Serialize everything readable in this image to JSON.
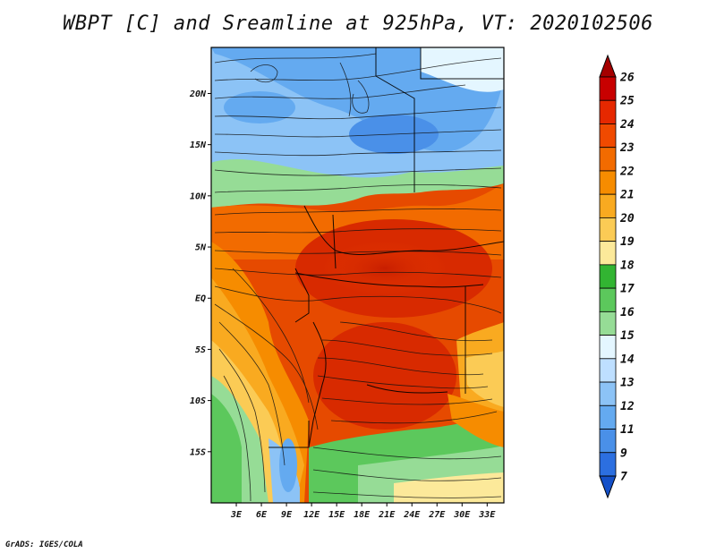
{
  "title": "WBPT [C] and Sreamline at 925hPa, VT: 2020102506",
  "credit": "GrADS: IGES/COLA",
  "map": {
    "lat_labels": [
      "20N",
      "15N",
      "10N",
      "5N",
      "EQ",
      "5S",
      "10S",
      "15S"
    ],
    "lat_values": [
      20,
      15,
      10,
      5,
      0,
      -5,
      -10,
      -15
    ],
    "lon_labels": [
      "3E",
      "6E",
      "9E",
      "12E",
      "15E",
      "18E",
      "21E",
      "24E",
      "27E",
      "30E",
      "33E"
    ],
    "lon_values": [
      3,
      6,
      9,
      12,
      15,
      18,
      21,
      24,
      27,
      30,
      33
    ],
    "lat_range": [
      -20,
      24.5
    ],
    "lon_range": [
      0,
      35
    ]
  },
  "colorbar": {
    "labels": [
      "26",
      "25",
      "24",
      "23",
      "22",
      "21",
      "20",
      "19",
      "18",
      "17",
      "16",
      "15",
      "14",
      "13",
      "12",
      "11",
      "9",
      "7"
    ],
    "colors": [
      "#a50000",
      "#c80000",
      "#e62800",
      "#f04a00",
      "#f26b00",
      "#f68c00",
      "#f9aa20",
      "#fbcb55",
      "#fce99a",
      "#32b432",
      "#5cc85c",
      "#96dc96",
      "#e4f6ff",
      "#bedfff",
      "#8cc3f6",
      "#64aaf0",
      "#4a90e8",
      "#2c6fe0",
      "#1450c8"
    ]
  },
  "colors": {
    "cold": "#3c8ce6",
    "mid_green": "#5cc85c",
    "warm": "#e63c00",
    "hot": "#c81e00"
  }
}
